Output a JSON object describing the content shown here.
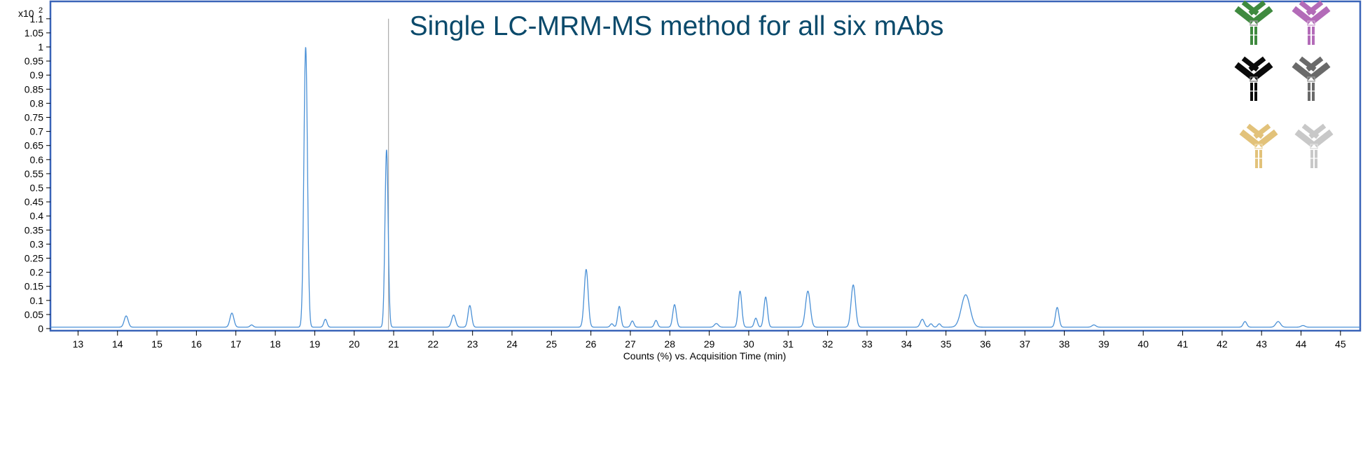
{
  "chart_data": {
    "type": "line",
    "title": "Single LC-MRM-MS method for all six mAbs",
    "xlabel": "Counts (%) vs. Acquisition Time (min)",
    "ylabel": "",
    "y_multiplier_base": "x10",
    "y_multiplier_exp": "2",
    "xlim": [
      12.3,
      45.5
    ],
    "ylim": [
      -0.005,
      1.1
    ],
    "x_ticks": [
      13,
      14,
      15,
      16,
      17,
      18,
      19,
      20,
      21,
      22,
      23,
      24,
      25,
      26,
      27,
      28,
      29,
      30,
      31,
      32,
      33,
      34,
      35,
      36,
      37,
      38,
      39,
      40,
      41,
      42,
      43,
      44,
      45
    ],
    "y_ticks": [
      0,
      0.05,
      0.1,
      0.15,
      0.2,
      0.25,
      0.3,
      0.35,
      0.4,
      0.45,
      0.5,
      0.55,
      0.6,
      0.65,
      0.7,
      0.75,
      0.8,
      0.85,
      0.9,
      0.95,
      1,
      1.05,
      1.1
    ],
    "grid": false,
    "marker_x": 20.87,
    "line_color": "#4a90d6",
    "baseline": 0.005,
    "series": [
      {
        "peaks": [
          [
            14.22,
            0.04,
            0.05
          ],
          [
            16.9,
            0.05,
            0.05
          ],
          [
            17.4,
            0.008,
            0.04
          ],
          [
            18.77,
            0.995,
            0.045
          ],
          [
            19.27,
            0.028,
            0.04
          ],
          [
            20.82,
            0.63,
            0.04
          ],
          [
            22.52,
            0.043,
            0.05
          ],
          [
            22.93,
            0.077,
            0.045
          ],
          [
            25.88,
            0.205,
            0.05
          ],
          [
            26.53,
            0.012,
            0.04
          ],
          [
            26.72,
            0.074,
            0.04
          ],
          [
            27.05,
            0.022,
            0.04
          ],
          [
            27.65,
            0.024,
            0.04
          ],
          [
            28.12,
            0.08,
            0.045
          ],
          [
            29.18,
            0.013,
            0.05
          ],
          [
            29.78,
            0.128,
            0.045
          ],
          [
            30.18,
            0.032,
            0.04
          ],
          [
            30.43,
            0.107,
            0.045
          ],
          [
            31.5,
            0.128,
            0.06
          ],
          [
            32.65,
            0.15,
            0.055
          ],
          [
            34.4,
            0.028,
            0.05
          ],
          [
            34.62,
            0.012,
            0.04
          ],
          [
            34.83,
            0.012,
            0.04
          ],
          [
            35.5,
            0.115,
            0.11
          ],
          [
            37.82,
            0.07,
            0.045
          ],
          [
            38.75,
            0.008,
            0.05
          ],
          [
            42.58,
            0.02,
            0.045
          ],
          [
            43.42,
            0.02,
            0.06
          ],
          [
            44.05,
            0.006,
            0.05
          ]
        ]
      }
    ]
  },
  "antibody_icons": [
    {
      "name": "green-antibody-icon",
      "color": "#3f8a3f",
      "hinge": "#9a9a9a"
    },
    {
      "name": "purple-antibody-icon",
      "color": "#b36bb8",
      "hinge": "#cfa3d2"
    },
    {
      "name": "black-antibody-icon",
      "color": "#0a0a0a",
      "hinge": "#7a7a7a"
    },
    {
      "name": "darkgray-antibody-icon",
      "color": "#6a6a6a",
      "hinge": "#9a9a9a"
    },
    {
      "name": "tan-antibody-icon",
      "color": "#e2c27a",
      "hinge": "#efdcae"
    },
    {
      "name": "lightgray-antibody-icon",
      "color": "#c8c8c8",
      "hinge": "#dedede"
    }
  ]
}
